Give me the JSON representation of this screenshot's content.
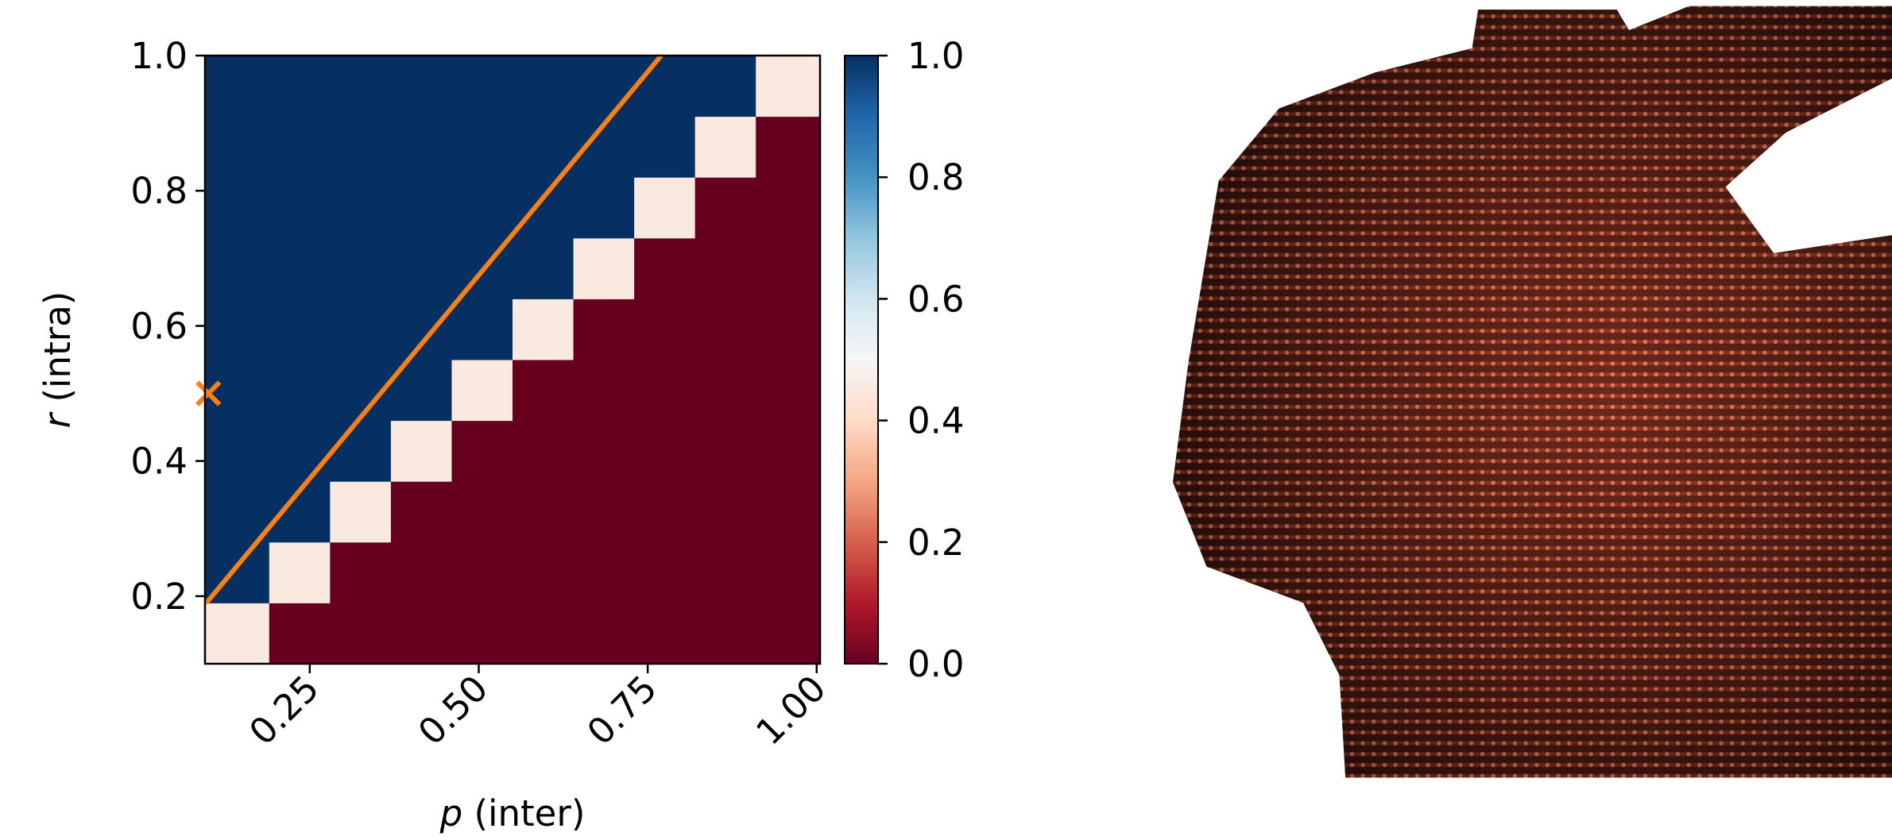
{
  "chart_data": {
    "type": "heatmap",
    "colormap": "RdBu",
    "x": [
      0.145,
      0.235,
      0.325,
      0.415,
      0.505,
      0.595,
      0.685,
      0.775,
      0.865,
      0.955
    ],
    "y": [
      0.145,
      0.235,
      0.325,
      0.415,
      0.505,
      0.595,
      0.685,
      0.775,
      0.865,
      0.955
    ],
    "z": [
      [
        0.45,
        0,
        0,
        0,
        0,
        0,
        0,
        0,
        0,
        0
      ],
      [
        1,
        0.45,
        0,
        0,
        0,
        0,
        0,
        0,
        0,
        0
      ],
      [
        1,
        1,
        0.45,
        0,
        0,
        0,
        0,
        0,
        0,
        0
      ],
      [
        1,
        1,
        1,
        0.45,
        0,
        0,
        0,
        0,
        0,
        0
      ],
      [
        1,
        1,
        1,
        1,
        0.45,
        0,
        0,
        0,
        0,
        0
      ],
      [
        1,
        1,
        1,
        1,
        1,
        0.45,
        0,
        0,
        0,
        0
      ],
      [
        1,
        1,
        1,
        1,
        1,
        1,
        0.45,
        0,
        0,
        0
      ],
      [
        1,
        1,
        1,
        1,
        1,
        1,
        1,
        0.45,
        0,
        0
      ],
      [
        1,
        1,
        1,
        1,
        1,
        1,
        1,
        1,
        0.45,
        0
      ],
      [
        1,
        1,
        1,
        1,
        1,
        1,
        1,
        1,
        1,
        0.45
      ]
    ],
    "xlim": [
      0.095,
      1.005
    ],
    "ylim": [
      0.1,
      1.0
    ],
    "xticks": [
      0.25,
      {
        "value": 0.5,
        "label": "0.50"
      },
      0.75,
      {
        "value": 1.0,
        "label": "1.00"
      }
    ],
    "yticks": [
      0.2,
      0.4,
      0.6,
      0.8,
      {
        "value": 1.0,
        "label": "1.0"
      }
    ],
    "clim": [
      0,
      1
    ],
    "cticks": [
      {
        "value": 0,
        "label": "0.0"
      },
      0.2,
      0.4,
      0.6,
      0.8,
      {
        "value": 1.0,
        "label": "1.0"
      }
    ],
    "xlabel_symbol": "p",
    "xlabel_text": "(inter)",
    "ylabel_symbol": "r",
    "ylabel_text": "(intra)",
    "line": {
      "x": [
        0.097,
        0.77
      ],
      "y": [
        0.19,
        1.0
      ],
      "color": "#ff7f0e"
    },
    "marker": {
      "x": 0.1,
      "y": 0.5,
      "color": "#ff7f0e"
    }
  }
}
